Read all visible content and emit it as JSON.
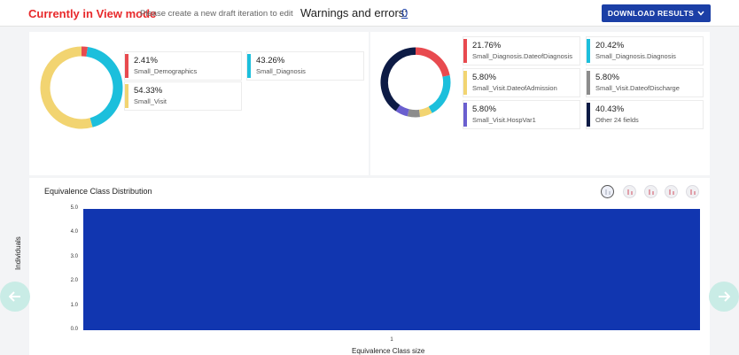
{
  "header": {
    "mode_title": "Currently in View mode",
    "mode_subtitle": "Please create a new draft iteration to edit",
    "warnings_label": "Warnings and errors:",
    "warnings_count": "0",
    "download_label": "DOWNLOAD RESULTS"
  },
  "left_summary": {
    "slices": [
      {
        "pct": "2.41%",
        "name": "Small_Demographics",
        "value": 2.41,
        "color": "#e84a4f"
      },
      {
        "pct": "43.26%",
        "name": "Small_Diagnosis",
        "value": 43.26,
        "color": "#1cbfdc"
      },
      {
        "pct": "54.33%",
        "name": "Small_Visit",
        "value": 54.33,
        "color": "#f2d471"
      }
    ]
  },
  "right_summary": {
    "slices": [
      {
        "pct": "21.76%",
        "name": "Small_Diagnosis.DateofDiagnosis",
        "value": 21.76,
        "color": "#e84a4f"
      },
      {
        "pct": "20.42%",
        "name": "Small_Diagnosis.Diagnosis",
        "value": 20.42,
        "color": "#1cbfdc"
      },
      {
        "pct": "5.80%",
        "name": "Small_Visit.DateofAdmission",
        "value": 5.8,
        "color": "#f2d471"
      },
      {
        "pct": "5.80%",
        "name": "Small_Visit.DateofDischarge",
        "value": 5.8,
        "color": "#8c8c8c"
      },
      {
        "pct": "5.80%",
        "name": "Small_Visit.HospVar1",
        "value": 5.8,
        "color": "#6a5fcf"
      },
      {
        "pct": "40.43%",
        "name": "Other 24 fields",
        "value": 40.43,
        "color": "#0d1b45"
      }
    ]
  },
  "chart_data": {
    "type": "bar",
    "title": "Equivalence Class Distribution",
    "categories": [
      "1"
    ],
    "values": [
      5.0
    ],
    "xlabel": "Equivalence Class size",
    "ylabel": "Individuals",
    "ylim": [
      0,
      5
    ],
    "yticks": [
      "0.0",
      "1.0",
      "2.0",
      "3.0",
      "4.0",
      "5.0"
    ],
    "bar_color": "#1136b0",
    "grid": false
  }
}
